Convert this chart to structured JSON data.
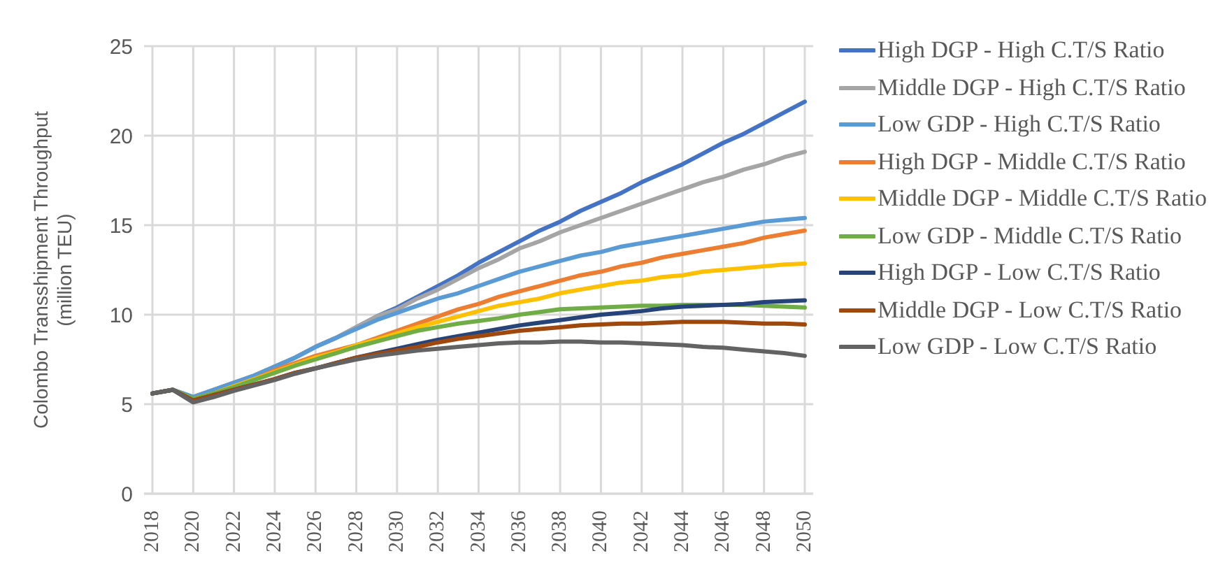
{
  "chart_data": {
    "type": "line",
    "ylabel": "Colombo Transshipment Throughput\n(million TEU)",
    "categories": [
      "2018",
      null,
      "2020",
      null,
      "2022",
      null,
      "2024",
      null,
      "2026",
      null,
      "2028",
      null,
      "2030",
      null,
      "2032",
      null,
      "2034",
      null,
      "2036",
      null,
      "2038",
      null,
      "2040",
      null,
      "2042",
      null,
      "2044",
      null,
      "2046",
      null,
      "2048",
      null,
      "2050"
    ],
    "series": [
      {
        "name": "High DGP - High C.T/S Ratio",
        "color": "#4472c4",
        "values": [
          5.6,
          5.8,
          5.4,
          5.8,
          6.2,
          6.6,
          7.1,
          7.6,
          8.2,
          8.7,
          9.3,
          9.9,
          10.4,
          11.0,
          11.6,
          12.2,
          12.9,
          13.5,
          14.1,
          14.7,
          15.2,
          15.8,
          16.3,
          16.8,
          17.4,
          17.9,
          18.4,
          19.0,
          19.6,
          20.1,
          20.7,
          21.3,
          21.9
        ]
      },
      {
        "name": "Middle DGP - High C.T/S Ratio",
        "color": "#a5a5a5",
        "values": [
          5.6,
          5.8,
          5.4,
          5.8,
          6.2,
          6.6,
          7.1,
          7.6,
          8.2,
          8.7,
          9.3,
          9.9,
          10.3,
          10.9,
          11.4,
          12.0,
          12.6,
          13.1,
          13.7,
          14.1,
          14.6,
          15.0,
          15.4,
          15.8,
          16.2,
          16.6,
          17.0,
          17.4,
          17.7,
          18.1,
          18.4,
          18.8,
          19.1
        ]
      },
      {
        "name": "Low GDP - High C.T/S Ratio",
        "color": "#5b9bd5",
        "values": [
          5.6,
          5.8,
          5.4,
          5.8,
          6.2,
          6.6,
          7.1,
          7.6,
          8.2,
          8.7,
          9.2,
          9.7,
          10.1,
          10.5,
          10.9,
          11.2,
          11.6,
          12.0,
          12.4,
          12.7,
          13.0,
          13.3,
          13.5,
          13.8,
          14.0,
          14.2,
          14.4,
          14.6,
          14.8,
          15.0,
          15.2,
          15.3,
          15.4
        ]
      },
      {
        "name": "High DGP - Middle C.T/S Ratio",
        "color": "#ed7d31",
        "values": [
          null,
          null,
          5.3,
          5.6,
          6.0,
          6.4,
          6.9,
          7.3,
          7.7,
          8.0,
          8.3,
          8.7,
          9.1,
          9.5,
          9.9,
          10.3,
          10.6,
          11.0,
          11.3,
          11.6,
          11.9,
          12.2,
          12.4,
          12.7,
          12.9,
          13.2,
          13.4,
          13.6,
          13.8,
          14.0,
          14.3,
          14.5,
          14.7
        ]
      },
      {
        "name": "Middle DGP - Middle C.T/S Ratio",
        "color": "#ffc000",
        "values": [
          null,
          null,
          5.3,
          5.6,
          6.0,
          6.4,
          6.8,
          7.2,
          7.6,
          7.9,
          8.3,
          8.6,
          8.95,
          9.3,
          9.6,
          9.9,
          10.2,
          10.5,
          10.7,
          10.9,
          11.2,
          11.4,
          11.6,
          11.8,
          11.9,
          12.1,
          12.2,
          12.4,
          12.5,
          12.6,
          12.7,
          12.8,
          12.85
        ]
      },
      {
        "name": "Low GDP - Middle C.T/S Ratio",
        "color": "#70ad47",
        "values": [
          5.6,
          5.8,
          5.3,
          5.6,
          5.95,
          6.35,
          6.75,
          7.15,
          7.5,
          7.85,
          8.2,
          8.5,
          8.8,
          9.1,
          9.3,
          9.5,
          9.65,
          9.8,
          10.0,
          10.15,
          10.3,
          10.35,
          10.4,
          10.45,
          10.5,
          10.5,
          10.55,
          10.55,
          10.55,
          10.55,
          10.5,
          10.45,
          10.4
        ]
      },
      {
        "name": "High DGP - Low C.T/S Ratio",
        "color": "#264478",
        "values": [
          5.6,
          5.8,
          5.2,
          5.5,
          5.8,
          6.1,
          6.4,
          6.75,
          7.0,
          7.3,
          7.6,
          7.85,
          8.1,
          8.35,
          8.6,
          8.8,
          9.0,
          9.2,
          9.4,
          9.55,
          9.7,
          9.85,
          10.0,
          10.1,
          10.2,
          10.35,
          10.45,
          10.5,
          10.55,
          10.6,
          10.7,
          10.75,
          10.8
        ]
      },
      {
        "name": "Middle DGP - Low C.T/S Ratio",
        "color": "#9e480e",
        "values": [
          5.6,
          5.8,
          5.2,
          5.5,
          5.8,
          6.1,
          6.4,
          6.75,
          7.0,
          7.3,
          7.6,
          7.8,
          8.0,
          8.2,
          8.45,
          8.65,
          8.8,
          8.95,
          9.1,
          9.2,
          9.3,
          9.4,
          9.45,
          9.5,
          9.5,
          9.55,
          9.6,
          9.6,
          9.6,
          9.55,
          9.5,
          9.5,
          9.45
        ]
      },
      {
        "name": "Low GDP - Low C.T/S Ratio",
        "color": "#636363",
        "values": [
          5.6,
          5.8,
          5.1,
          5.4,
          5.75,
          6.05,
          6.35,
          6.7,
          7.0,
          7.25,
          7.5,
          7.7,
          7.85,
          8.0,
          8.1,
          8.2,
          8.3,
          8.4,
          8.45,
          8.45,
          8.5,
          8.5,
          8.45,
          8.45,
          8.4,
          8.35,
          8.3,
          8.2,
          8.15,
          8.05,
          7.95,
          7.85,
          7.7
        ]
      }
    ],
    "ylim": [
      0,
      25
    ],
    "yticks": [
      0,
      5,
      10,
      15,
      20,
      25
    ],
    "grid": true,
    "legend": "right",
    "marker": "none",
    "line_style": "solid"
  }
}
